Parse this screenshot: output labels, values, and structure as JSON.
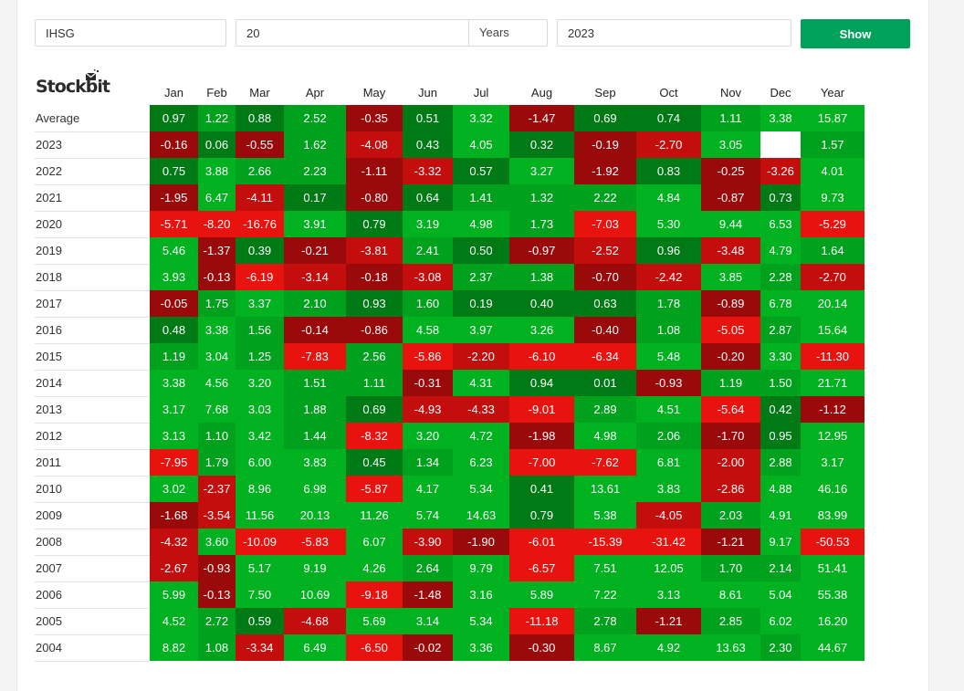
{
  "controls": {
    "symbol": "IHSG",
    "years": "20",
    "years_unit": "Years",
    "end_year": "2023",
    "show_label": "Show"
  },
  "logo": {
    "text": "Stockbit"
  },
  "colors": {
    "accent": "#00a25b",
    "gain_light": "#00b21f",
    "gain_mid": "#00a11c",
    "gain_dark": "#007a15",
    "loss_light": "#e8120f",
    "loss_mid": "#c40e0e",
    "loss_dark": "#9a0a0a"
  },
  "table": {
    "headers": [
      "",
      "Jan",
      "Feb",
      "Mar",
      "Apr",
      "May",
      "Jun",
      "Jul",
      "Aug",
      "Sep",
      "Oct",
      "Nov",
      "Dec",
      "Year"
    ],
    "rows": [
      {
        "label": "Average",
        "values": [
          "0.97",
          "1.22",
          "0.88",
          "2.52",
          "-0.35",
          "0.51",
          "3.32",
          "-1.47",
          "0.69",
          "0.74",
          "1.11",
          "3.38",
          "15.87"
        ]
      },
      {
        "label": "2023",
        "values": [
          "-0.16",
          "0.06",
          "-0.55",
          "1.62",
          "-4.08",
          "0.43",
          "4.05",
          "0.32",
          "-0.19",
          "-2.70",
          "3.05",
          "",
          "1.57"
        ]
      },
      {
        "label": "2022",
        "values": [
          "0.75",
          "3.88",
          "2.66",
          "2.23",
          "-1.11",
          "-3.32",
          "0.57",
          "3.27",
          "-1.92",
          "0.83",
          "-0.25",
          "-3.26",
          "4.01"
        ]
      },
      {
        "label": "2021",
        "values": [
          "-1.95",
          "6.47",
          "-4.11",
          "0.17",
          "-0.80",
          "0.64",
          "1.41",
          "1.32",
          "2.22",
          "4.84",
          "-0.87",
          "0.73",
          "9.73"
        ]
      },
      {
        "label": "2020",
        "values": [
          "-5.71",
          "-8.20",
          "-16.76",
          "3.91",
          "0.79",
          "3.19",
          "4.98",
          "1.73",
          "-7.03",
          "5.30",
          "9.44",
          "6.53",
          "-5.29"
        ]
      },
      {
        "label": "2019",
        "values": [
          "5.46",
          "-1.37",
          "0.39",
          "-0.21",
          "-3.81",
          "2.41",
          "0.50",
          "-0.97",
          "-2.52",
          "0.96",
          "-3.48",
          "4.79",
          "1.64"
        ]
      },
      {
        "label": "2018",
        "values": [
          "3.93",
          "-0.13",
          "-6.19",
          "-3.14",
          "-0.18",
          "-3.08",
          "2.37",
          "1.38",
          "-0.70",
          "-2.42",
          "3.85",
          "2.28",
          "-2.70"
        ]
      },
      {
        "label": "2017",
        "values": [
          "-0.05",
          "1.75",
          "3.37",
          "2.10",
          "0.93",
          "1.60",
          "0.19",
          "0.40",
          "0.63",
          "1.78",
          "-0.89",
          "6.78",
          "20.14"
        ]
      },
      {
        "label": "2016",
        "values": [
          "0.48",
          "3.38",
          "1.56",
          "-0.14",
          "-0.86",
          "4.58",
          "3.97",
          "3.26",
          "-0.40",
          "1.08",
          "-5.05",
          "2.87",
          "15.64"
        ]
      },
      {
        "label": "2015",
        "values": [
          "1.19",
          "3.04",
          "1.25",
          "-7.83",
          "2.56",
          "-5.86",
          "-2.20",
          "-6.10",
          "-6.34",
          "5.48",
          "-0.20",
          "3.30",
          "-11.30"
        ]
      },
      {
        "label": "2014",
        "values": [
          "3.38",
          "4.56",
          "3.20",
          "1.51",
          "1.11",
          "-0.31",
          "4.31",
          "0.94",
          "0.01",
          "-0.93",
          "1.19",
          "1.50",
          "21.71"
        ]
      },
      {
        "label": "2013",
        "values": [
          "3.17",
          "7.68",
          "3.03",
          "1.88",
          "0.69",
          "-4.93",
          "-4.33",
          "-9.01",
          "2.89",
          "4.51",
          "-5.64",
          "0.42",
          "-1.12"
        ]
      },
      {
        "label": "2012",
        "values": [
          "3.13",
          "1.10",
          "3.42",
          "1.44",
          "-8.32",
          "3.20",
          "4.72",
          "-1.98",
          "4.98",
          "2.06",
          "-1.70",
          "0.95",
          "12.95"
        ]
      },
      {
        "label": "2011",
        "values": [
          "-7.95",
          "1.79",
          "6.00",
          "3.83",
          "0.45",
          "1.34",
          "6.23",
          "-7.00",
          "-7.62",
          "6.81",
          "-2.00",
          "2.88",
          "3.17"
        ]
      },
      {
        "label": "2010",
        "values": [
          "3.02",
          "-2.37",
          "8.96",
          "6.98",
          "-5.87",
          "4.17",
          "5.34",
          "0.41",
          "13.61",
          "3.83",
          "-2.86",
          "4.88",
          "46.16"
        ]
      },
      {
        "label": "2009",
        "values": [
          "-1.68",
          "-3.54",
          "11.56",
          "20.13",
          "11.26",
          "5.74",
          "14.63",
          "0.79",
          "5.38",
          "-4.05",
          "2.03",
          "4.91",
          "83.99"
        ]
      },
      {
        "label": "2008",
        "values": [
          "-4.32",
          "3.60",
          "-10.09",
          "-5.83",
          "6.07",
          "-3.90",
          "-1.90",
          "-6.01",
          "-15.39",
          "-31.42",
          "-1.21",
          "9.17",
          "-50.53"
        ]
      },
      {
        "label": "2007",
        "values": [
          "-2.67",
          "-0.93",
          "5.17",
          "9.19",
          "4.26",
          "2.64",
          "9.79",
          "-6.57",
          "7.51",
          "12.05",
          "1.70",
          "2.14",
          "51.41"
        ]
      },
      {
        "label": "2006",
        "values": [
          "5.99",
          "-0.13",
          "7.50",
          "10.69",
          "-9.18",
          "-1.48",
          "3.16",
          "5.89",
          "7.22",
          "3.13",
          "8.61",
          "5.04",
          "55.38"
        ]
      },
      {
        "label": "2005",
        "values": [
          "4.52",
          "2.72",
          "0.59",
          "-4.68",
          "5.69",
          "3.14",
          "5.34",
          "-11.18",
          "2.78",
          "-1.21",
          "2.85",
          "6.02",
          "16.20"
        ]
      },
      {
        "label": "2004",
        "values": [
          "8.82",
          "1.08",
          "-3.34",
          "6.49",
          "-6.50",
          "-0.02",
          "3.36",
          "-0.30",
          "8.67",
          "4.92",
          "13.63",
          "2.30",
          "44.67"
        ]
      }
    ]
  }
}
